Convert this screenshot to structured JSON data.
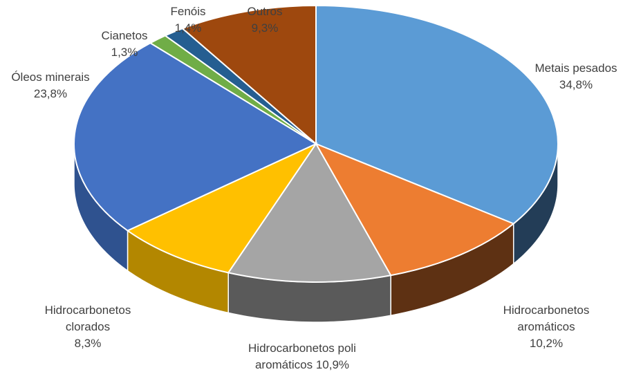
{
  "chart_data": {
    "type": "pie",
    "style": "3d",
    "title": "",
    "slices": [
      {
        "label_lines": [
          "Metais pesados",
          "34,8%"
        ],
        "category": "Metais pesados",
        "value": 34.8,
        "color": "#5B9BD5",
        "side_color": "#233D57"
      },
      {
        "label_lines": [
          "Hidrocarbonetos",
          "aromáticos",
          "10,2%"
        ],
        "category": "Hidrocarbonetos aromáticos",
        "value": 10.2,
        "color": "#ED7D31",
        "side_color": "#5E3113"
      },
      {
        "label_lines": [
          "Hidrocarbonetos poli",
          "aromáticos 10,9%"
        ],
        "category": "Hidrocarbonetos poli aromáticos",
        "value": 10.9,
        "color": "#A5A5A5",
        "side_color": "#5A5A5A"
      },
      {
        "label_lines": [
          "Hidrocarbonetos",
          "clorados",
          "8,3%"
        ],
        "category": "Hidrocarbonetos clorados",
        "value": 8.3,
        "color": "#FFC000",
        "side_color": "#B38700"
      },
      {
        "label_lines": [
          "Óleos minerais",
          "23,8%"
        ],
        "category": "Óleos minerais",
        "value": 23.8,
        "color": "#4472C4",
        "side_color": "#2F528F"
      },
      {
        "label_lines": [
          "Cianetos",
          "1,3%"
        ],
        "category": "Cianetos",
        "value": 1.3,
        "color": "#70AD47",
        "side_color": "#4E7A31"
      },
      {
        "label_lines": [
          "Fenóis",
          "1,4%"
        ],
        "category": "Fenóis",
        "value": 1.4,
        "color": "#255E91",
        "side_color": "#173A5A"
      },
      {
        "label_lines": [
          "Outros",
          "9,3%"
        ],
        "category": "Outros",
        "value": 9.3,
        "color": "#9E480E",
        "side_color": "#5E2B08"
      }
    ]
  }
}
